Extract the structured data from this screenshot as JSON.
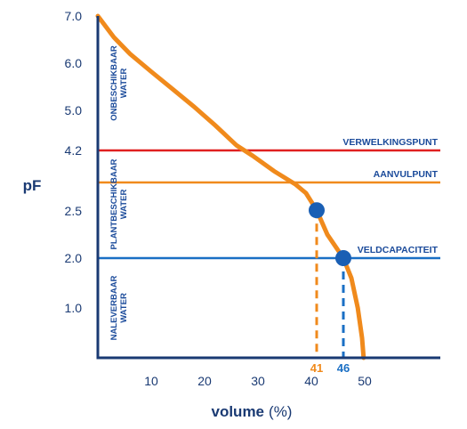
{
  "chart_data": {
    "type": "line",
    "ylabel": "pF",
    "xlabel": "volume",
    "xlabel_unit": "(%)",
    "x_ticks": [
      10,
      20,
      30,
      40,
      50
    ],
    "y_ticks": [
      {
        "label": "7.0",
        "value": 7.0
      },
      {
        "label": "6.0",
        "value": 6.0
      },
      {
        "label": "5.0",
        "value": 5.0
      },
      {
        "label": "4.2",
        "value": 4.2
      },
      {
        "label": "2.5",
        "value": 2.5
      },
      {
        "label": "2.0",
        "value": 2.0
      },
      {
        "label": "1.0",
        "value": 1.0
      }
    ],
    "curve": {
      "color": "#f08a1c",
      "points": [
        {
          "x": 0,
          "y": 7.0
        },
        {
          "x": 3,
          "y": 6.55
        },
        {
          "x": 6,
          "y": 6.2
        },
        {
          "x": 10,
          "y": 5.82
        },
        {
          "x": 14,
          "y": 5.45
        },
        {
          "x": 18,
          "y": 5.08
        },
        {
          "x": 22,
          "y": 4.7
        },
        {
          "x": 26,
          "y": 4.3
        },
        {
          "x": 29,
          "y": 4.05
        },
        {
          "x": 33,
          "y": 3.62
        },
        {
          "x": 37,
          "y": 3.25
        },
        {
          "x": 39,
          "y": 3.0
        },
        {
          "x": 41,
          "y": 2.52
        },
        {
          "x": 43,
          "y": 2.25
        },
        {
          "x": 46,
          "y": 2.0
        },
        {
          "x": 47.5,
          "y": 1.6
        },
        {
          "x": 48.7,
          "y": 1.0
        },
        {
          "x": 49.5,
          "y": 0.4
        },
        {
          "x": 49.8,
          "y": 0.0
        }
      ]
    },
    "reference_lines": [
      {
        "name": "VERWELKINGSPUNT",
        "y": 4.2,
        "color": "#e02020"
      },
      {
        "name": "AANVULPUNT",
        "y": 3.3,
        "color": "#f08a1c"
      },
      {
        "name": "VELDCAPACITEIT",
        "y": 2.0,
        "color": "#1a6fc4"
      }
    ],
    "markers": [
      {
        "label": "41",
        "x": 41,
        "y": 2.52,
        "color": "#f08a1c"
      },
      {
        "label": "46",
        "x": 46,
        "y": 2.0,
        "color": "#1a6fc4"
      }
    ],
    "zones": [
      {
        "lines": [
          "ONBESCHIKBAAR",
          "WATER"
        ],
        "y_from": 4.2,
        "y_to": 7.0
      },
      {
        "lines": [
          "PLANTBESCHIKBAAR",
          "WATER"
        ],
        "y_from": 2.0,
        "y_to": 4.2
      },
      {
        "lines": [
          "NALEVERBAAR",
          "WATER"
        ],
        "y_from": 0.0,
        "y_to": 2.0
      }
    ],
    "colors": {
      "axis": "#1a3a73",
      "point": "#1a5fb4"
    }
  }
}
